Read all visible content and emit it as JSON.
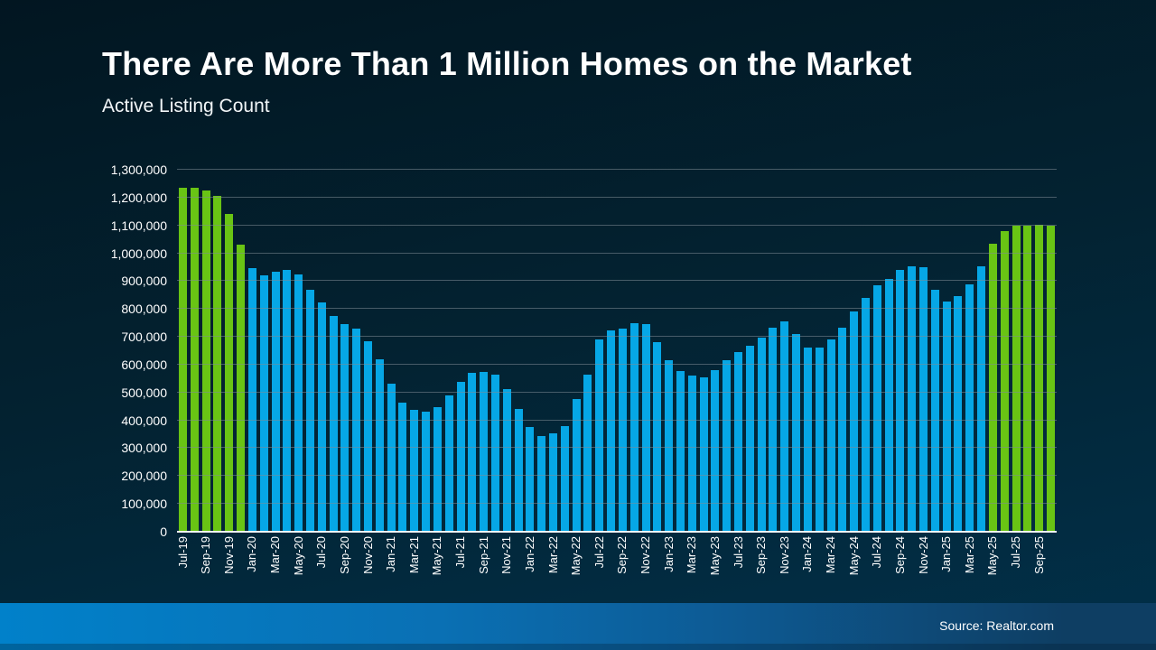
{
  "slide": {
    "title": "There Are More Than 1 Million Homes on the Market",
    "subtitle": "Active Listing Count",
    "source": "Source: Realtor.com"
  },
  "colors": {
    "bar_blue": "#06A7E6",
    "bar_green": "#69C414",
    "background_top": "#021621",
    "background_mid": "#032231",
    "background_bottom": "#013049",
    "footer_left": "#0181CA",
    "footer_right": "#0E3E63",
    "gridline": "rgba(128,140,150,0.55)",
    "axis_line": "#F2F5F7",
    "text": "#FFFFFF"
  },
  "chart_data": {
    "type": "bar",
    "title": "Active Listing Count",
    "xlabel": "",
    "ylabel": "",
    "ylim": [
      0,
      1300000
    ],
    "ytick_interval": 100000,
    "ytick_labels": [
      "0",
      "100,000",
      "200,000",
      "300,000",
      "400,000",
      "500,000",
      "600,000",
      "700,000",
      "800,000",
      "900,000",
      "1,000,000",
      "1,100,000",
      "1,200,000",
      "1,300,000"
    ],
    "grid": "horizontal",
    "legend": "none",
    "xtick_every": 2,
    "green_threshold": 1000000,
    "color_rule": "bars with value >= 1,000,000 are green, others blue",
    "categories": [
      "Jul-19",
      "Aug-19",
      "Sep-19",
      "Oct-19",
      "Nov-19",
      "Dec-19",
      "Jan-20",
      "Feb-20",
      "Mar-20",
      "Apr-20",
      "May-20",
      "Jun-20",
      "Jul-20",
      "Aug-20",
      "Sep-20",
      "Oct-20",
      "Nov-20",
      "Dec-20",
      "Jan-21",
      "Feb-21",
      "Mar-21",
      "Apr-21",
      "May-21",
      "Jun-21",
      "Jul-21",
      "Aug-21",
      "Sep-21",
      "Oct-21",
      "Nov-21",
      "Dec-21",
      "Jan-22",
      "Feb-22",
      "Mar-22",
      "Apr-22",
      "May-22",
      "Jun-22",
      "Jul-22",
      "Aug-22",
      "Sep-22",
      "Oct-22",
      "Nov-22",
      "Dec-22",
      "Jan-23",
      "Feb-23",
      "Mar-23",
      "Apr-23",
      "May-23",
      "Jun-23",
      "Jul-23",
      "Aug-23",
      "Sep-23",
      "Oct-23",
      "Nov-23",
      "Dec-23",
      "Jan-24",
      "Feb-24",
      "Mar-24",
      "Apr-24",
      "May-24",
      "Jun-24",
      "Jul-24",
      "Aug-24",
      "Sep-24",
      "Oct-24",
      "Nov-24",
      "Dec-24",
      "Jan-25",
      "Feb-25",
      "Mar-25",
      "Apr-25",
      "May-25",
      "Jun-25",
      "Jul-25",
      "Aug-25",
      "Sep-25",
      "Oct-25"
    ],
    "values": [
      1234000,
      1234000,
      1224000,
      1207000,
      1141000,
      1032000,
      948000,
      922000,
      934000,
      940000,
      925000,
      870000,
      822000,
      776000,
      747000,
      731000,
      685000,
      620000,
      533000,
      463000,
      437000,
      431000,
      446000,
      489000,
      538000,
      570000,
      575000,
      564000,
      511000,
      442000,
      377000,
      343000,
      352000,
      379000,
      476000,
      565000,
      690000,
      724000,
      730000,
      749000,
      746000,
      680000,
      616000,
      577000,
      560000,
      554000,
      580000,
      615000,
      645000,
      667000,
      696000,
      733000,
      754000,
      711000,
      663000,
      663000,
      690000,
      733000,
      792000,
      839000,
      884000,
      908000,
      941000,
      952000,
      951000,
      868000,
      828000,
      846000,
      889000,
      954000,
      1035000,
      1080000,
      1099000,
      1100000,
      1101000,
      1099000
    ]
  }
}
